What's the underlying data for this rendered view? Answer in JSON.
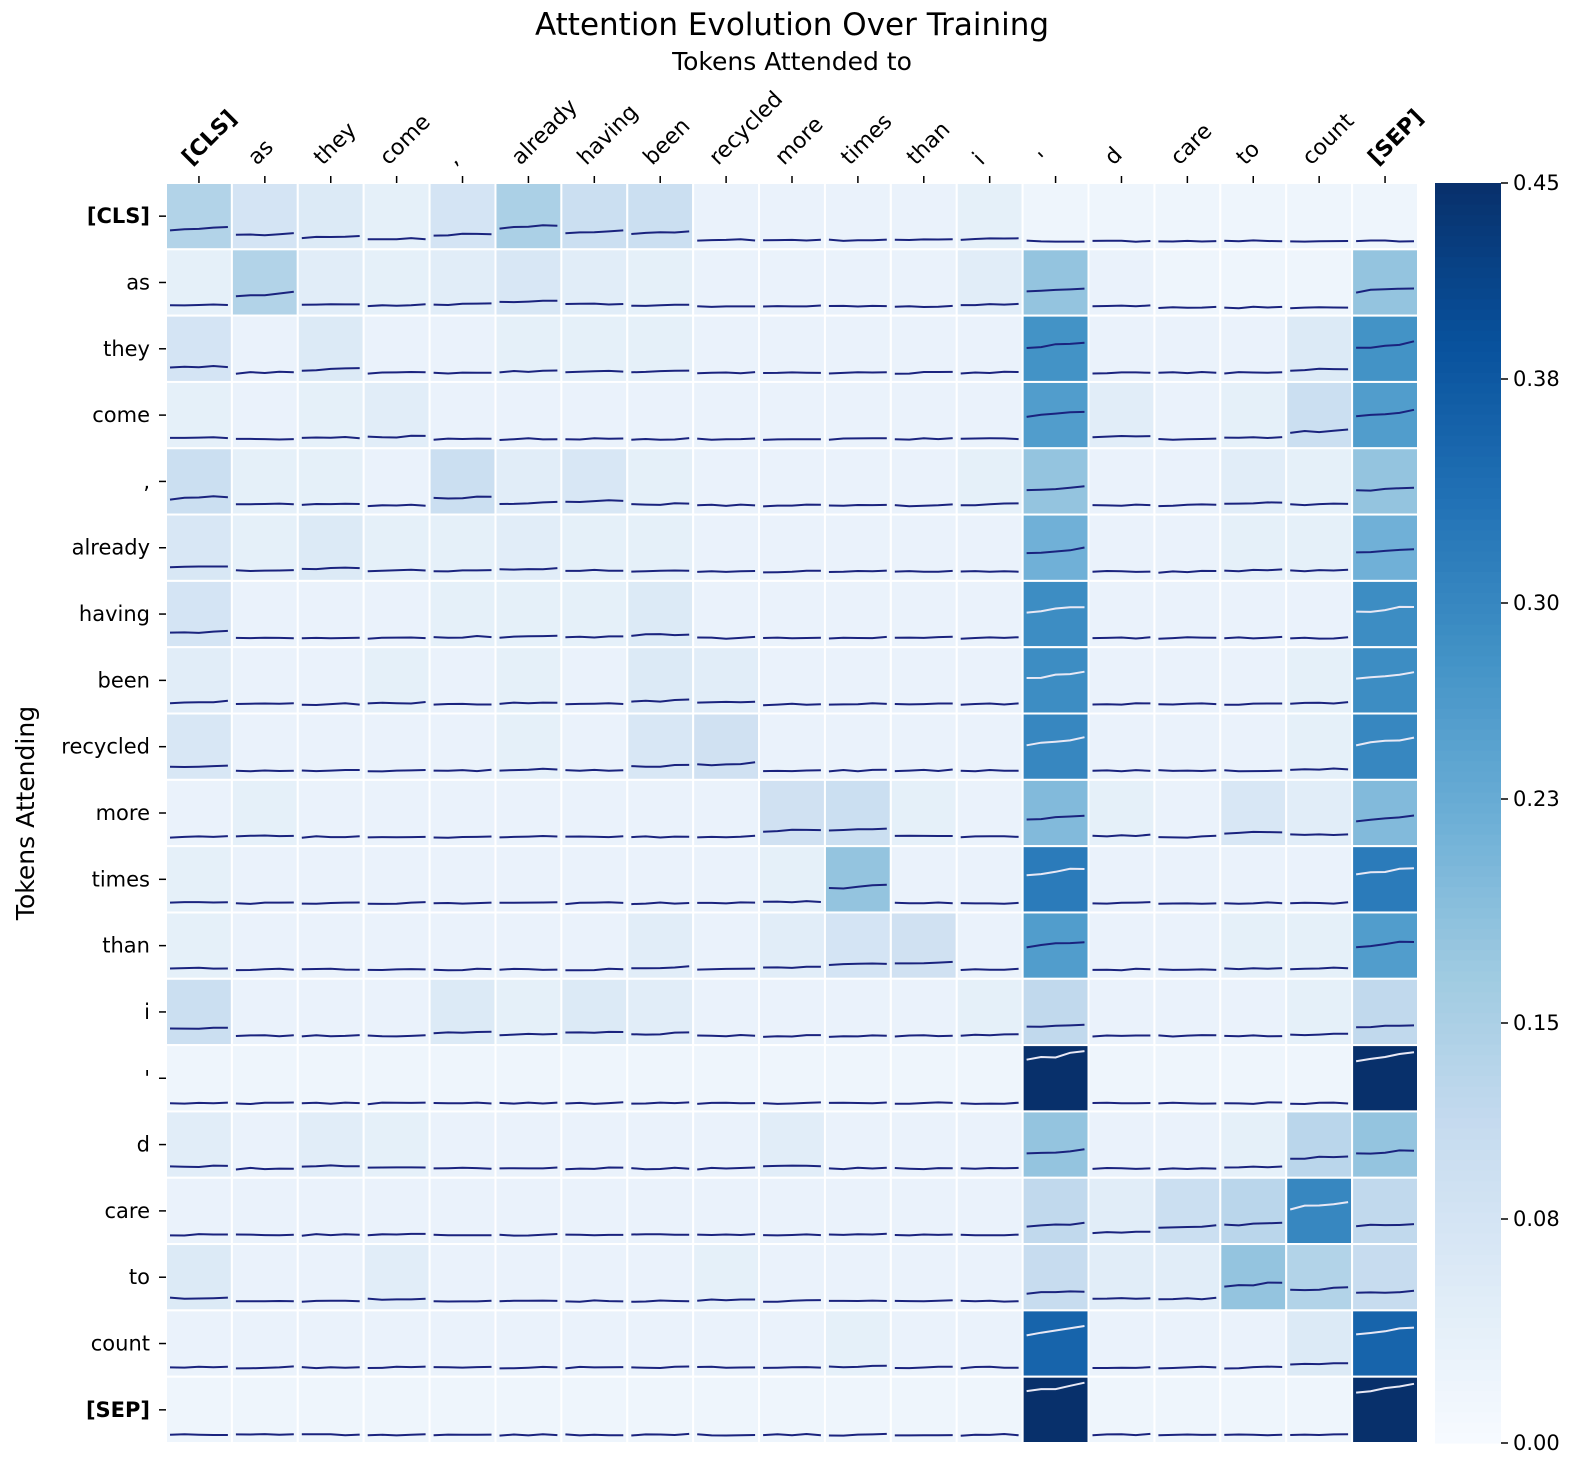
{
  "chart_data": {
    "type": "heatmap",
    "title": "Attention Evolution Over Training",
    "xlabel": "Tokens Attended to",
    "ylabel": "Tokens Attending",
    "tokens": [
      "[CLS]",
      "as",
      "they",
      "come",
      ",",
      "already",
      "having",
      "been",
      "recycled",
      "more",
      "times",
      "than",
      "i",
      "'",
      "d",
      "care",
      "to",
      "count",
      "[SEP]"
    ],
    "bold_tokens": [
      "[CLS]",
      "[SEP]"
    ],
    "colorbar": {
      "ticks": [
        0.0,
        0.08,
        0.15,
        0.23,
        0.3,
        0.38,
        0.45
      ],
      "tick_labels": [
        "0.00",
        "0.08",
        "0.15",
        "0.23",
        "0.30",
        "0.38",
        "0.45"
      ],
      "min": 0.0,
      "max": 0.45,
      "colormap": "Blues"
    },
    "values": [
      [
        0.14,
        0.08,
        0.06,
        0.04,
        0.08,
        0.15,
        0.1,
        0.1,
        0.03,
        0.03,
        0.03,
        0.03,
        0.04,
        0.02,
        0.02,
        0.02,
        0.02,
        0.02,
        0.02
      ],
      [
        0.04,
        0.14,
        0.05,
        0.04,
        0.05,
        0.07,
        0.05,
        0.04,
        0.03,
        0.03,
        0.03,
        0.03,
        0.05,
        0.18,
        0.03,
        0.02,
        0.02,
        0.02,
        0.18
      ],
      [
        0.08,
        0.03,
        0.06,
        0.03,
        0.03,
        0.04,
        0.04,
        0.04,
        0.03,
        0.03,
        0.03,
        0.03,
        0.03,
        0.28,
        0.03,
        0.03,
        0.03,
        0.06,
        0.28
      ],
      [
        0.04,
        0.03,
        0.04,
        0.05,
        0.03,
        0.03,
        0.03,
        0.03,
        0.03,
        0.03,
        0.03,
        0.03,
        0.03,
        0.26,
        0.05,
        0.03,
        0.04,
        0.1,
        0.26
      ],
      [
        0.1,
        0.04,
        0.04,
        0.03,
        0.1,
        0.05,
        0.07,
        0.04,
        0.03,
        0.03,
        0.03,
        0.03,
        0.04,
        0.18,
        0.03,
        0.03,
        0.05,
        0.04,
        0.18
      ],
      [
        0.07,
        0.04,
        0.06,
        0.04,
        0.04,
        0.05,
        0.04,
        0.04,
        0.03,
        0.03,
        0.03,
        0.03,
        0.03,
        0.22,
        0.03,
        0.03,
        0.04,
        0.04,
        0.22
      ],
      [
        0.08,
        0.03,
        0.03,
        0.03,
        0.04,
        0.04,
        0.04,
        0.06,
        0.03,
        0.03,
        0.03,
        0.03,
        0.03,
        0.29,
        0.03,
        0.03,
        0.03,
        0.03,
        0.29
      ],
      [
        0.05,
        0.03,
        0.03,
        0.04,
        0.03,
        0.04,
        0.03,
        0.06,
        0.05,
        0.03,
        0.03,
        0.03,
        0.03,
        0.29,
        0.03,
        0.03,
        0.03,
        0.04,
        0.29
      ],
      [
        0.07,
        0.03,
        0.03,
        0.03,
        0.03,
        0.04,
        0.03,
        0.07,
        0.09,
        0.03,
        0.03,
        0.03,
        0.03,
        0.3,
        0.03,
        0.03,
        0.03,
        0.04,
        0.3
      ],
      [
        0.03,
        0.04,
        0.03,
        0.03,
        0.03,
        0.03,
        0.03,
        0.03,
        0.03,
        0.09,
        0.1,
        0.04,
        0.03,
        0.2,
        0.04,
        0.03,
        0.07,
        0.05,
        0.2
      ],
      [
        0.04,
        0.03,
        0.03,
        0.03,
        0.03,
        0.03,
        0.03,
        0.03,
        0.03,
        0.04,
        0.18,
        0.03,
        0.03,
        0.32,
        0.03,
        0.03,
        0.03,
        0.03,
        0.32
      ],
      [
        0.04,
        0.03,
        0.03,
        0.03,
        0.03,
        0.03,
        0.03,
        0.05,
        0.03,
        0.05,
        0.08,
        0.09,
        0.03,
        0.26,
        0.03,
        0.03,
        0.04,
        0.04,
        0.26
      ],
      [
        0.1,
        0.03,
        0.03,
        0.03,
        0.06,
        0.04,
        0.06,
        0.05,
        0.03,
        0.03,
        0.03,
        0.03,
        0.04,
        0.12,
        0.03,
        0.03,
        0.03,
        0.04,
        0.12
      ],
      [
        0.02,
        0.02,
        0.02,
        0.02,
        0.02,
        0.02,
        0.02,
        0.02,
        0.02,
        0.02,
        0.02,
        0.02,
        0.02,
        0.45,
        0.02,
        0.02,
        0.02,
        0.02,
        0.45
      ],
      [
        0.05,
        0.03,
        0.05,
        0.04,
        0.03,
        0.03,
        0.03,
        0.03,
        0.03,
        0.05,
        0.03,
        0.03,
        0.03,
        0.18,
        0.03,
        0.03,
        0.04,
        0.13,
        0.18
      ],
      [
        0.03,
        0.03,
        0.03,
        0.03,
        0.03,
        0.03,
        0.03,
        0.03,
        0.03,
        0.03,
        0.03,
        0.03,
        0.03,
        0.12,
        0.05,
        0.1,
        0.13,
        0.3,
        0.12
      ],
      [
        0.06,
        0.03,
        0.03,
        0.05,
        0.03,
        0.03,
        0.03,
        0.03,
        0.04,
        0.03,
        0.03,
        0.03,
        0.03,
        0.11,
        0.05,
        0.05,
        0.18,
        0.14,
        0.11
      ],
      [
        0.03,
        0.03,
        0.03,
        0.03,
        0.03,
        0.03,
        0.03,
        0.03,
        0.03,
        0.03,
        0.04,
        0.03,
        0.03,
        0.36,
        0.03,
        0.03,
        0.03,
        0.06,
        0.36
      ],
      [
        0.02,
        0.02,
        0.02,
        0.02,
        0.02,
        0.02,
        0.02,
        0.02,
        0.02,
        0.02,
        0.02,
        0.02,
        0.02,
        0.45,
        0.02,
        0.02,
        0.02,
        0.02,
        0.45
      ]
    ]
  }
}
